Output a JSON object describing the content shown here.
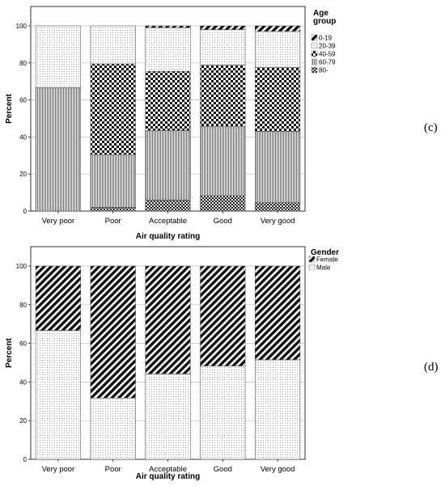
{
  "chart_data": [
    {
      "type": "bar",
      "stacked": true,
      "panel_label": "(c)",
      "categories": [
        "Very poor",
        "Poor",
        "Acceptable",
        "Good",
        "Very good"
      ],
      "xlabel": "Air quality rating",
      "ylabel": "Percent",
      "ylim": [
        0,
        100
      ],
      "yticks": [
        "0",
        "20",
        "40",
        "60",
        "80",
        "100"
      ],
      "grid": true,
      "legend_title": "Age group",
      "legend_title_lines": [
        "Age",
        "group"
      ],
      "legend_position": "right",
      "series": [
        {
          "name": "0-19",
          "pattern": "diagonal-dense",
          "values": [
            0,
            0,
            1,
            2,
            3
          ]
        },
        {
          "name": "20-39",
          "pattern": "dots-fine",
          "values": [
            33.3,
            20.5,
            23.5,
            19.2,
            19.5
          ]
        },
        {
          "name": "40-59",
          "pattern": "checker",
          "values": [
            0,
            49,
            32,
            33,
            34.5
          ]
        },
        {
          "name": "60-79",
          "pattern": "vertical-lines",
          "values": [
            66.7,
            28.5,
            37.5,
            37.5,
            38.5
          ]
        },
        {
          "name": "80-",
          "pattern": "cross-checker",
          "values": [
            0,
            2,
            6,
            8.3,
            4.5
          ]
        }
      ]
    },
    {
      "type": "bar",
      "stacked": true,
      "panel_label": "(d)",
      "categories": [
        "Very poor",
        "Poor",
        "Acceptable",
        "Good",
        "Very good"
      ],
      "xlabel": "Air quality rating",
      "ylabel": "Percent",
      "ylim": [
        0,
        100
      ],
      "yticks": [
        "0",
        "20",
        "40",
        "60",
        "80",
        "100"
      ],
      "grid": true,
      "legend_title": "Gender",
      "legend_title_lines": [
        "Gender"
      ],
      "legend_position": "right",
      "series": [
        {
          "name": "Female",
          "pattern": "diagonal-dense",
          "values": [
            33.3,
            68.3,
            55.8,
            51.7,
            48.5
          ]
        },
        {
          "name": "Male",
          "pattern": "dots-fine",
          "values": [
            66.7,
            31.7,
            44.2,
            48.3,
            51.5
          ]
        }
      ]
    }
  ]
}
